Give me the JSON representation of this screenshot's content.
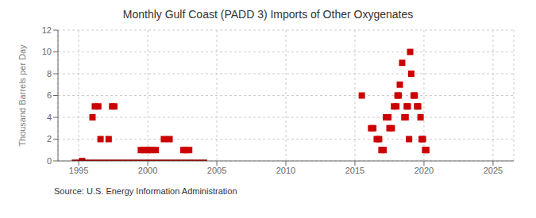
{
  "chart_data": {
    "type": "scatter",
    "title": "Monthly Gulf Coast (PADD 3) Imports of Other Oxygenates",
    "ylabel": "Thousand Barrels per Day",
    "annotations": [
      "Source: U.S. Energy Information Administration"
    ],
    "xlim": [
      1993.5,
      2026.5
    ],
    "ylim": [
      0,
      12
    ],
    "xticks": [
      1995,
      2000,
      2005,
      2010,
      2015,
      2020,
      2025
    ],
    "yticks": [
      0,
      2,
      4,
      6,
      8,
      10,
      12
    ],
    "grid": true,
    "series": [
      {
        "type": "scatter",
        "color": "#cc0000",
        "marker": "square",
        "x": [
          1995.25,
          1996.0,
          1996.17,
          1996.42,
          1996.58,
          1997.17,
          1997.42,
          1997.58,
          1999.5,
          1999.75,
          2000.0,
          2000.25,
          2000.58,
          2001.17,
          2001.58,
          2002.58,
          2002.75,
          2003.0,
          2015.5,
          2016.17,
          2016.33,
          2016.58,
          2016.75,
          2016.92,
          2017.08,
          2017.25,
          2017.42,
          2017.5,
          2017.67,
          2017.83,
          2018.0,
          2018.08,
          2018.17,
          2018.25,
          2018.42,
          2018.58,
          2018.67,
          2018.75,
          2018.83,
          2018.92,
          2019.0,
          2019.08,
          2019.25,
          2019.33,
          2019.5,
          2019.58,
          2019.75,
          2019.83,
          2019.92,
          2020.08,
          2020.17
        ],
        "values": [
          0,
          4,
          5,
          5,
          2,
          2,
          5,
          5,
          1,
          1,
          1,
          1,
          1,
          2,
          2,
          1,
          1,
          1,
          6,
          3,
          3,
          2,
          2,
          1,
          1,
          4,
          4,
          3,
          3,
          5,
          5,
          6,
          6,
          7,
          9,
          4,
          4,
          5,
          5,
          2,
          10,
          8,
          6,
          6,
          5,
          5,
          4,
          2,
          2,
          1,
          1
        ]
      },
      {
        "type": "line",
        "color": "#8b1010",
        "x": [
          1994.5,
          2004.3
        ],
        "values": [
          0,
          0
        ]
      }
    ]
  }
}
